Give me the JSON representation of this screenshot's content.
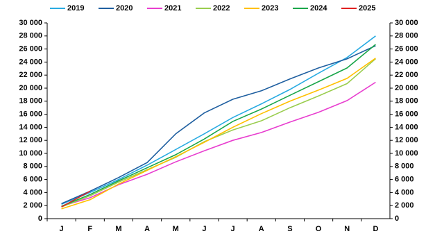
{
  "chart_data": {
    "type": "line",
    "categories": [
      "J",
      "F",
      "M",
      "A",
      "M",
      "J",
      "J",
      "A",
      "S",
      "O",
      "N",
      "D"
    ],
    "series": [
      {
        "name": "2019",
        "color": "#29abe2",
        "values": [
          2200,
          4000,
          6000,
          8200,
          10600,
          13000,
          15500,
          17600,
          19800,
          22300,
          24700,
          28000
        ]
      },
      {
        "name": "2020",
        "color": "#1f5fa0",
        "values": [
          2300,
          4200,
          6300,
          8600,
          13000,
          16200,
          18300,
          19600,
          21400,
          23100,
          24500,
          26500
        ]
      },
      {
        "name": "2021",
        "color": "#e83ecf",
        "values": [
          1900,
          3200,
          5200,
          6800,
          8700,
          10400,
          12000,
          13200,
          14800,
          16300,
          18100,
          20900
        ]
      },
      {
        "name": "2022",
        "color": "#9acd4e",
        "values": [
          1800,
          3500,
          5600,
          7500,
          9400,
          11800,
          13600,
          15000,
          17000,
          18800,
          20700,
          24500
        ]
      },
      {
        "name": "2023",
        "color": "#ffc000",
        "values": [
          1500,
          2900,
          5300,
          7400,
          9500,
          11700,
          14000,
          16100,
          18000,
          19700,
          21500,
          24600
        ]
      },
      {
        "name": "2024",
        "color": "#1aa64a",
        "values": [
          1900,
          3700,
          5800,
          7800,
          9800,
          12200,
          14900,
          16800,
          18900,
          21000,
          23100,
          26700
        ]
      },
      {
        "name": "2025",
        "color": "#e02020",
        "values": [
          1800,
          4200,
          null,
          null,
          null,
          null,
          null,
          null,
          null,
          null,
          null,
          null
        ]
      }
    ],
    "ylim": [
      0,
      30000
    ],
    "yticks": [
      0,
      {
        "value": 2000,
        "label": "2 000"
      },
      {
        "value": 4000,
        "label": "4 000"
      },
      {
        "value": 6000,
        "label": "6 000"
      },
      {
        "value": 8000,
        "label": "8 000"
      },
      {
        "value": 10000,
        "label": "10 000"
      },
      {
        "value": 12000,
        "label": "12 000"
      },
      {
        "value": 14000,
        "label": "14 000"
      },
      {
        "value": 16000,
        "label": "16 000"
      },
      {
        "value": 18000,
        "label": "18 000"
      },
      {
        "value": 20000,
        "label": "20 000"
      },
      {
        "value": 22000,
        "label": "22 000"
      },
      {
        "value": 24000,
        "label": "24 000"
      },
      {
        "value": 26000,
        "label": "26 000"
      },
      {
        "value": 28000,
        "label": "28 000"
      },
      {
        "value": 30000,
        "label": "30 000"
      }
    ],
    "y2lim": [
      0,
      30000
    ],
    "y2ticks": [
      0,
      {
        "value": 2000,
        "label": "2 000"
      },
      {
        "value": 4000,
        "label": "4 000"
      },
      {
        "value": 6000,
        "label": "6 000"
      },
      {
        "value": 8000,
        "label": "8 000"
      },
      {
        "value": 10000,
        "label": "10 000"
      },
      {
        "value": 12000,
        "label": "12 000"
      },
      {
        "value": 14000,
        "label": "14 000"
      },
      {
        "value": 16000,
        "label": "16 000"
      },
      {
        "value": 18000,
        "label": "18 000"
      },
      {
        "value": 20000,
        "label": "20 000"
      },
      {
        "value": 22000,
        "label": "22 000"
      },
      {
        "value": 24000,
        "label": "24 000"
      },
      {
        "value": 26000,
        "label": "26 000"
      },
      {
        "value": 28000,
        "label": "28 000"
      },
      {
        "value": 30000,
        "label": "30 000"
      }
    ],
    "legend": "top"
  }
}
